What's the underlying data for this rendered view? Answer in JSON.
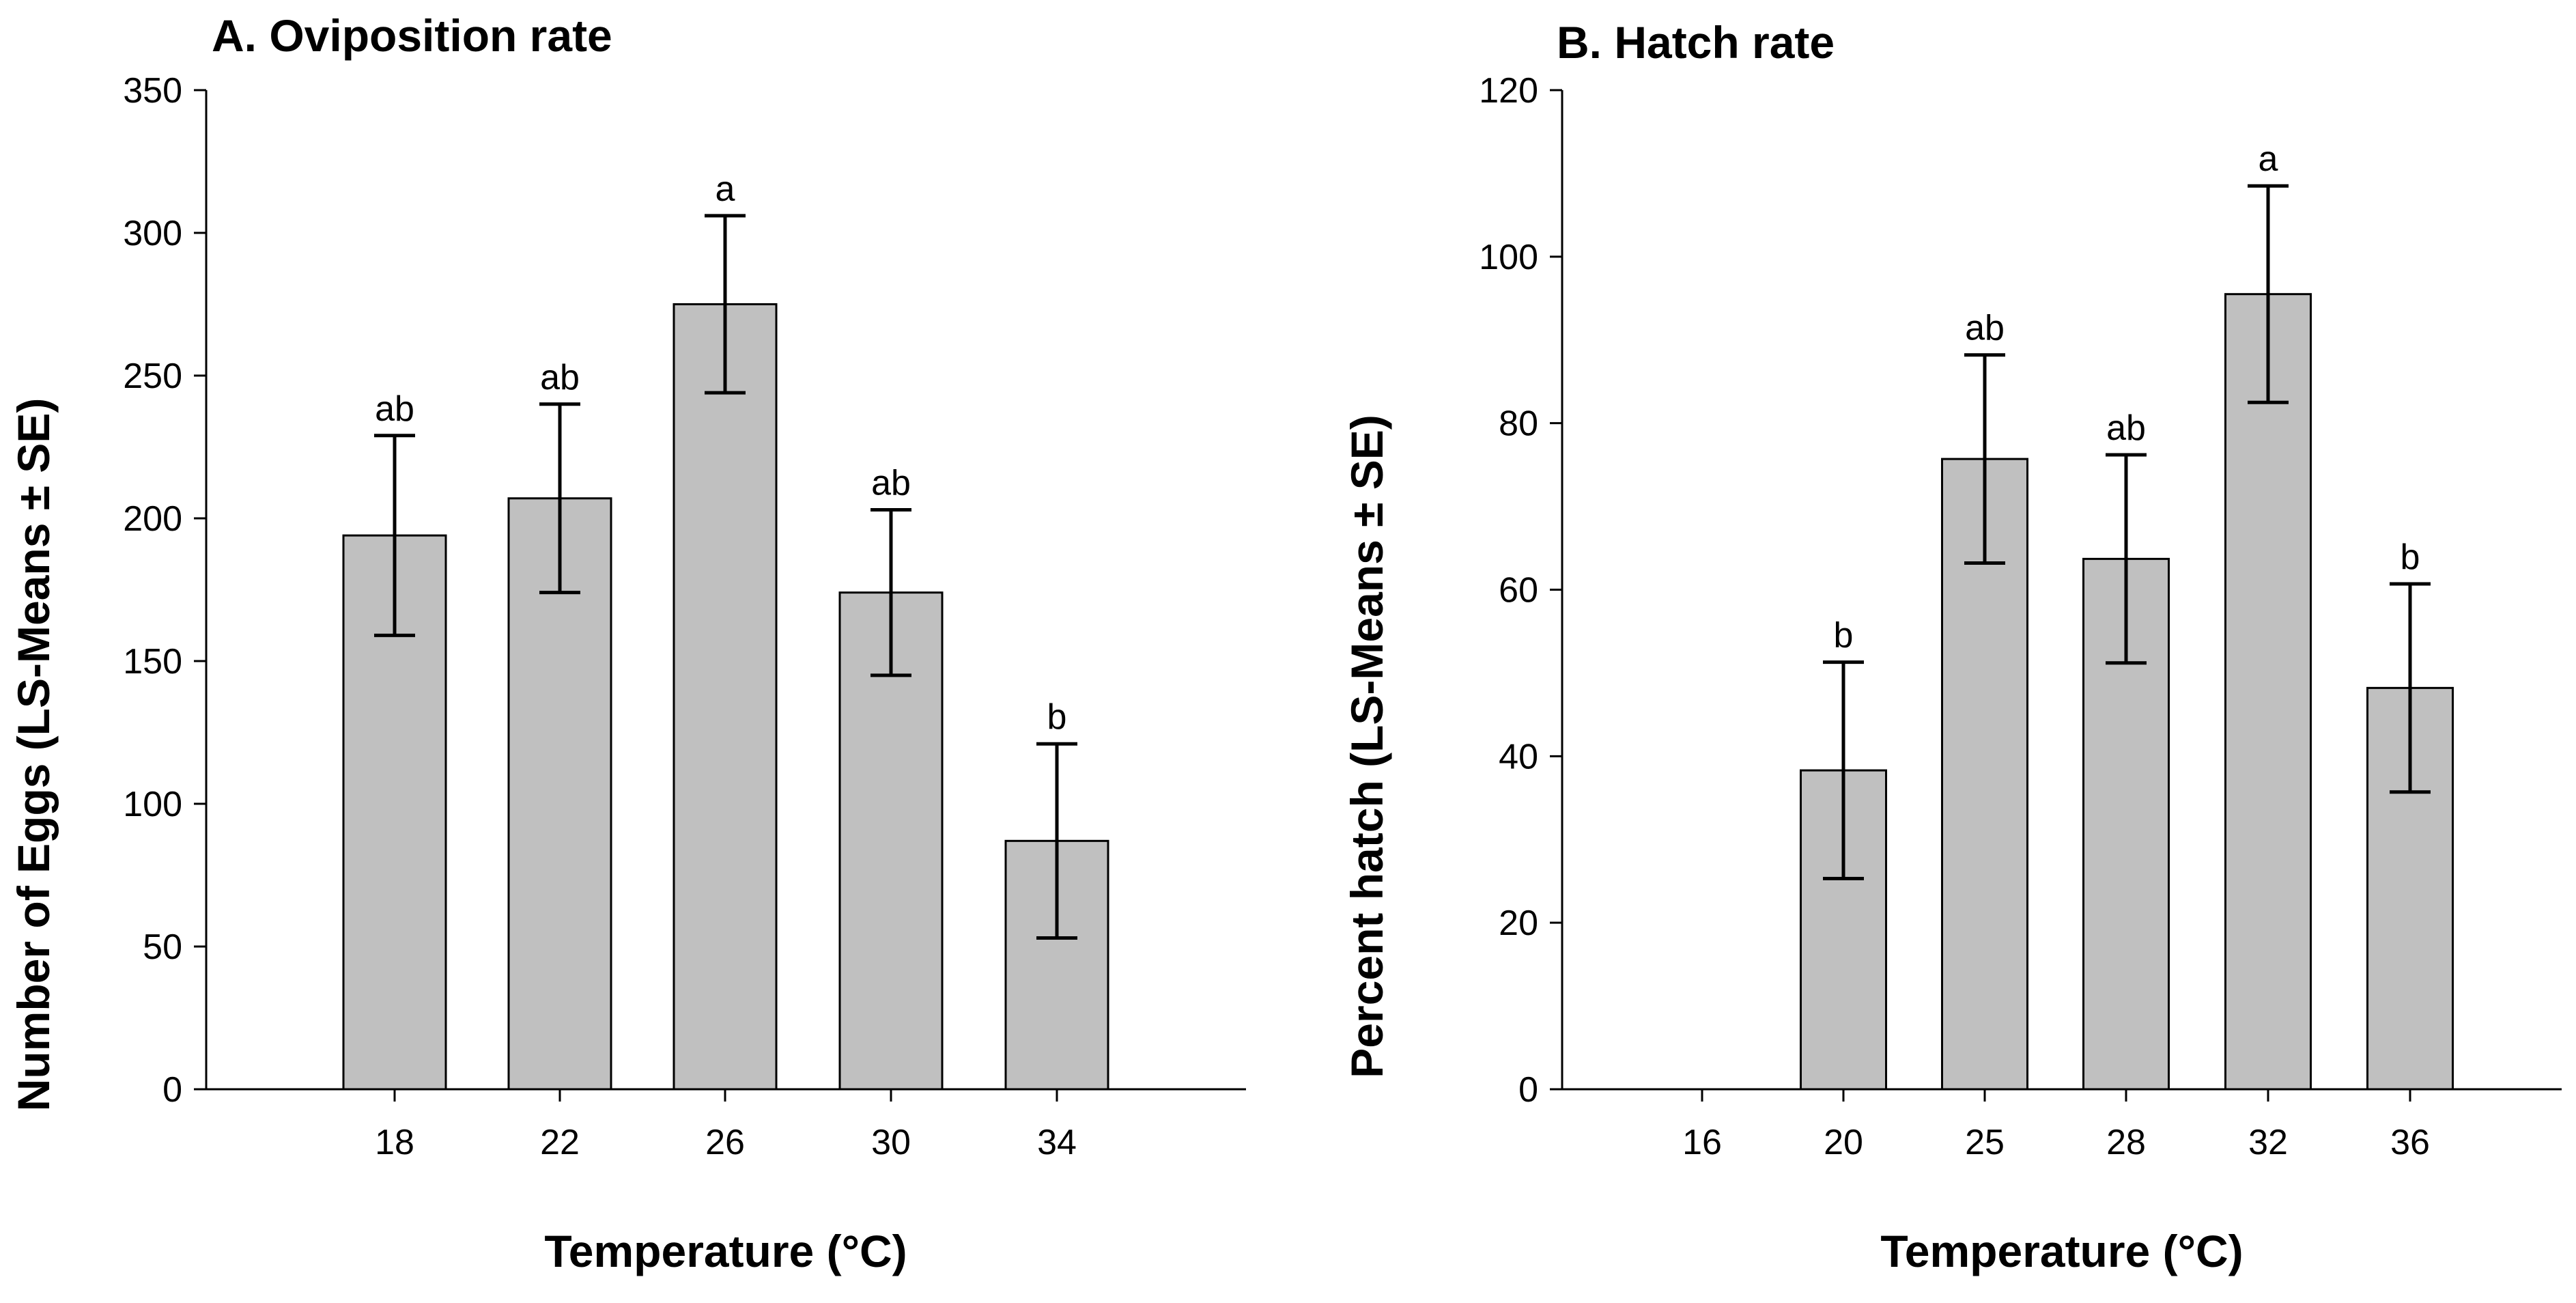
{
  "chart_data": [
    {
      "type": "bar",
      "panel": "A",
      "title": "A. Oviposition rate",
      "xlabel": "Temperature (°C)",
      "ylabel": "Number of Eggs (LS-Means ± SE)",
      "ylim": [
        0,
        350
      ],
      "yticks": [
        0,
        50,
        100,
        150,
        200,
        250,
        300,
        350
      ],
      "categories": [
        "18",
        "22",
        "26",
        "30",
        "34"
      ],
      "values": [
        194,
        207,
        275,
        174,
        87
      ],
      "errors": [
        35,
        33,
        31,
        29,
        34
      ],
      "significance": [
        "ab",
        "ab",
        "a",
        "ab",
        "b"
      ],
      "bar_color": "#c0c0c0",
      "grid": false
    },
    {
      "type": "bar",
      "panel": "B",
      "title": "B. Hatch rate",
      "xlabel": "Temperature (°C)",
      "ylabel": "Percent hatch (LS-Means ± SE)",
      "ylim": [
        0,
        120
      ],
      "yticks": [
        0,
        20,
        40,
        60,
        80,
        100,
        120
      ],
      "categories": [
        "16",
        "20",
        "25",
        "28",
        "32",
        "36"
      ],
      "values": [
        0,
        38.3,
        75.7,
        63.7,
        95.5,
        48.2
      ],
      "errors": [
        0,
        13,
        12.5,
        12.5,
        13,
        12.5
      ],
      "significance": [
        "",
        "b",
        "ab",
        "ab",
        "a",
        "b"
      ],
      "bar_color": "#c0c0c0",
      "grid": false
    }
  ]
}
